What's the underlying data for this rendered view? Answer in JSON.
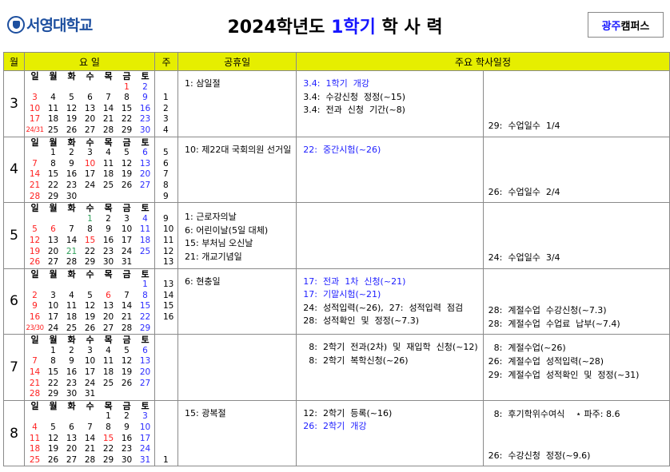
{
  "header": {
    "logo_text": "서영대학교",
    "title_prefix": "2024학년도 ",
    "title_highlight": "1학기",
    "title_suffix": " 학 사 력",
    "campus_highlight": "광주",
    "campus_rest": "캠퍼스"
  },
  "colors": {
    "header_bg": "#e6ee00",
    "blue": "#2020ff",
    "red": "#ff2020",
    "green": "#2ea05a",
    "logo": "#1d4f9f"
  },
  "columns": [
    "월",
    "요 일",
    "주",
    "공휴일",
    "주요  학사일정"
  ],
  "weekdays": [
    "일",
    "월",
    "화",
    "수",
    "목",
    "금",
    "토"
  ],
  "months": [
    {
      "month": "3",
      "weeks": [
        [
          "",
          "",
          "",
          "",
          "",
          "1",
          "2"
        ],
        [
          "3",
          "4",
          "5",
          "6",
          "7",
          "8",
          "9"
        ],
        [
          "10",
          "11",
          "12",
          "13",
          "14",
          "15",
          "16"
        ],
        [
          "17",
          "18",
          "19",
          "20",
          "21",
          "22",
          "23"
        ],
        [
          "24/31",
          "25",
          "26",
          "27",
          "28",
          "29",
          "30"
        ]
      ],
      "red_days": [
        "1"
      ],
      "green_days": [],
      "week_numbers": [
        "",
        "",
        "1",
        "2",
        "3",
        "4"
      ],
      "holidays": [
        {
          "text": "1:  삼일절"
        }
      ],
      "events": [
        {
          "text": "3.4:  1학기  개강",
          "blue": true
        },
        {
          "text": "3.4:  수강신청  정정(~15)"
        },
        {
          "text": "3.4:  전과  신청  기간(~8)"
        }
      ],
      "notes_top": [],
      "notes_bottom": [
        "29:  수업일수  1/4"
      ]
    },
    {
      "month": "4",
      "weeks": [
        [
          "",
          "1",
          "2",
          "3",
          "4",
          "5",
          "6"
        ],
        [
          "7",
          "8",
          "9",
          "10",
          "11",
          "12",
          "13"
        ],
        [
          "14",
          "15",
          "16",
          "17",
          "18",
          "19",
          "20"
        ],
        [
          "21",
          "22",
          "23",
          "24",
          "25",
          "26",
          "27"
        ],
        [
          "28",
          "29",
          "30",
          "",
          "",
          "",
          ""
        ]
      ],
      "red_days": [
        "10"
      ],
      "green_days": [],
      "week_numbers": [
        "",
        "5",
        "6",
        "7",
        "8",
        "9"
      ],
      "holidays": [
        {
          "text": "10:  제22대 국회의원 선거일"
        }
      ],
      "events": [
        {
          "text": "22:  중간시험(~26)",
          "blue": true
        }
      ],
      "notes_top": [],
      "notes_bottom": [
        "26:  수업일수  2/4"
      ]
    },
    {
      "month": "5",
      "weeks": [
        [
          "",
          "",
          "",
          "1",
          "2",
          "3",
          "4"
        ],
        [
          "5",
          "6",
          "7",
          "8",
          "9",
          "10",
          "11"
        ],
        [
          "12",
          "13",
          "14",
          "15",
          "16",
          "17",
          "18"
        ],
        [
          "19",
          "20",
          "21",
          "22",
          "23",
          "24",
          "25"
        ],
        [
          "26",
          "27",
          "28",
          "29",
          "30",
          "31",
          ""
        ]
      ],
      "red_days": [
        "6",
        "15"
      ],
      "green_days": [
        "1",
        "21"
      ],
      "week_numbers": [
        "",
        "9",
        "10",
        "11",
        "12",
        "13"
      ],
      "holidays": [
        {
          "text": "1:  근로자의날"
        },
        {
          "text": "6:  어린이날(5일  대체)"
        },
        {
          "text": "15:  부처님  오신날"
        },
        {
          "text": "21:  개교기념일"
        }
      ],
      "events": [],
      "notes_top": [],
      "notes_bottom": [
        "24:  수업일수  3/4"
      ]
    },
    {
      "month": "6",
      "weeks": [
        [
          "",
          "",
          "",
          "",
          "",
          "",
          "1"
        ],
        [
          "2",
          "3",
          "4",
          "5",
          "6",
          "7",
          "8"
        ],
        [
          "9",
          "10",
          "11",
          "12",
          "13",
          "14",
          "15"
        ],
        [
          "16",
          "17",
          "18",
          "19",
          "20",
          "21",
          "22"
        ],
        [
          "23/30",
          "24",
          "25",
          "26",
          "27",
          "28",
          "29"
        ]
      ],
      "red_days": [
        "6"
      ],
      "green_days": [],
      "week_numbers": [
        "",
        "13",
        "14",
        "15",
        "16",
        ""
      ],
      "holidays": [
        {
          "text": "6:  현충일"
        }
      ],
      "events": [
        {
          "text": "17:  전과  1차  신청(~21)",
          "blue": true
        },
        {
          "text": "17:  기말시험(~21)",
          "blue": true
        },
        {
          "text": "24:  성적입력(~26),  27:  성적입력  점검"
        },
        {
          "text": "28:  성적확인  및  정정(~7.3)"
        }
      ],
      "notes_top": [],
      "notes_bottom": [
        "28:  계절수업  수강신청(~7.3)",
        "28:  계절수업  수업료  납부(~7.4)"
      ]
    },
    {
      "month": "7",
      "weeks": [
        [
          "",
          "1",
          "2",
          "3",
          "4",
          "5",
          "6"
        ],
        [
          "7",
          "8",
          "9",
          "10",
          "11",
          "12",
          "13"
        ],
        [
          "14",
          "15",
          "16",
          "17",
          "18",
          "19",
          "20"
        ],
        [
          "21",
          "22",
          "23",
          "24",
          "25",
          "26",
          "27"
        ],
        [
          "28",
          "29",
          "30",
          "31",
          "",
          "",
          ""
        ]
      ],
      "red_days": [],
      "green_days": [],
      "week_numbers": [
        "",
        "",
        "",
        "",
        "",
        ""
      ],
      "holidays": [],
      "events": [
        {
          "text": "  8:  2학기  전과(2차)  및  재입학  신청(~12)"
        },
        {
          "text": "  8:  2학기  복학신청(~26)"
        }
      ],
      "notes_top": [
        "  8:  계절수업(~26)",
        "26:  계절수업  성적입력(~28)",
        "29:  계절수업  성적확인  및  정정(~31)"
      ],
      "notes_bottom": []
    },
    {
      "month": "8",
      "weeks": [
        [
          "",
          "",
          "",
          "",
          "1",
          "2",
          "3"
        ],
        [
          "4",
          "5",
          "6",
          "7",
          "8",
          "9",
          "10"
        ],
        [
          "11",
          "12",
          "13",
          "14",
          "15",
          "16",
          "17"
        ],
        [
          "18",
          "19",
          "20",
          "21",
          "22",
          "23",
          "24"
        ],
        [
          "25",
          "26",
          "27",
          "28",
          "29",
          "30",
          "31"
        ]
      ],
      "red_days": [
        "15"
      ],
      "green_days": [],
      "week_numbers": [
        "",
        "",
        "",
        "",
        "",
        "1"
      ],
      "holidays": [
        {
          "text": "15:  광복절"
        }
      ],
      "events": [
        {
          "text": "12:  2학기  등록(~16)"
        },
        {
          "text": "26:  2학기  개강",
          "blue": true
        }
      ],
      "notes_top": [
        "  8:  후기학위수여식    ⋆ 파주: 8.6"
      ],
      "notes_bottom": [
        "26:  수강신청  정정(~9.6)"
      ]
    }
  ]
}
